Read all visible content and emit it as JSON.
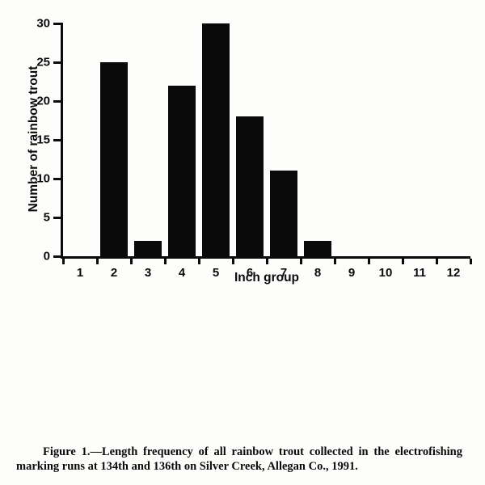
{
  "figure": {
    "caption_line1": "Figure 1.—Length frequency of all rainbow trout collected in the electrofishing",
    "caption_line2": "marking runs at 134th and 136th on Silver Creek, Allegan Co., 1991."
  },
  "chart_data": {
    "type": "bar",
    "categories": [
      "1",
      "2",
      "3",
      "4",
      "5",
      "6",
      "7",
      "8",
      "9",
      "10",
      "11",
      "12"
    ],
    "values": [
      0,
      25,
      2,
      22,
      30,
      18,
      11,
      2,
      0,
      0,
      0,
      0
    ],
    "title": "",
    "xlabel": "Inch group",
    "ylabel": "Number of rainbow trout",
    "ylim": [
      0,
      30
    ],
    "yticks": [
      0,
      5,
      10,
      15,
      20,
      25,
      30
    ],
    "bar_color": "#0a0a0a",
    "grid": false,
    "legend": "none"
  }
}
